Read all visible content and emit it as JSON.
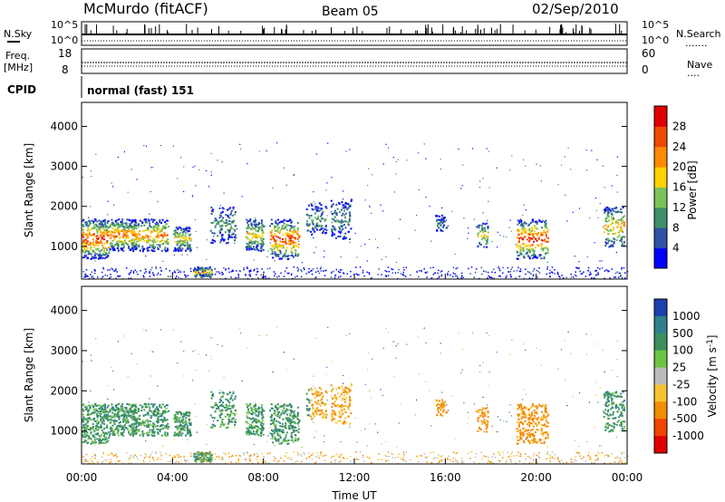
{
  "header": {
    "station": "McMurdo (fitACF)",
    "beam": "Beam 05",
    "date": "02/Sep/2010"
  },
  "top_panels": {
    "nsky_label": "N.Sky",
    "nsky_ticks": [
      "10^5",
      "10^0"
    ],
    "nsky_right_ticks": [
      "10^5",
      "10^0"
    ],
    "nsearch_label": "N.Search",
    "nsearch_dots": ".......",
    "freq_label": "Freq.",
    "freq_unit": "[MHz]",
    "freq_ticks": [
      "18",
      "8"
    ],
    "nave_label": "Nave",
    "nave_ticks": [
      "60",
      "0"
    ],
    "nave_dots": "....",
    "cpid_label": "CPID",
    "cpid_value": "normal (fast) 151"
  },
  "chart_data": [
    {
      "type": "heatmap",
      "name": "power",
      "ylabel": "Slant Range [km]",
      "ylim": [
        180,
        4600
      ],
      "yticks": [
        "1000",
        "2000",
        "3000",
        "4000"
      ],
      "colorbar_label": "Power [dB]",
      "colorbar_ticks": [
        "4",
        "8",
        "12",
        "16",
        "20",
        "24",
        "28"
      ],
      "colorbar_colors": [
        "#0000ff",
        "#2e52a6",
        "#3f8f6a",
        "#7cc25a",
        "#ffd100",
        "#ff8a00",
        "#f04800",
        "#e00000"
      ]
    },
    {
      "type": "heatmap",
      "name": "velocity",
      "ylabel": "Slant Range [km]",
      "ylim": [
        180,
        4600
      ],
      "yticks": [
        "1000",
        "2000",
        "3000",
        "4000"
      ],
      "colorbar_label": "Velocity [m s^-1]",
      "colorbar_ticks": [
        "1000",
        "500",
        "100",
        "25",
        "-25",
        "-100",
        "-500",
        "-1000"
      ],
      "colorbar_colors": [
        "#1b3fae",
        "#2f7f8f",
        "#3d8f5e",
        "#6cc544",
        "#bbbbbb",
        "#f5c330",
        "#f28c00",
        "#f04400",
        "#e00000"
      ]
    }
  ],
  "xaxis": {
    "label": "Time UT",
    "ticks": [
      "00:00",
      "04:00",
      "08:00",
      "12:00",
      "16:00",
      "20:00",
      "00:00"
    ]
  }
}
